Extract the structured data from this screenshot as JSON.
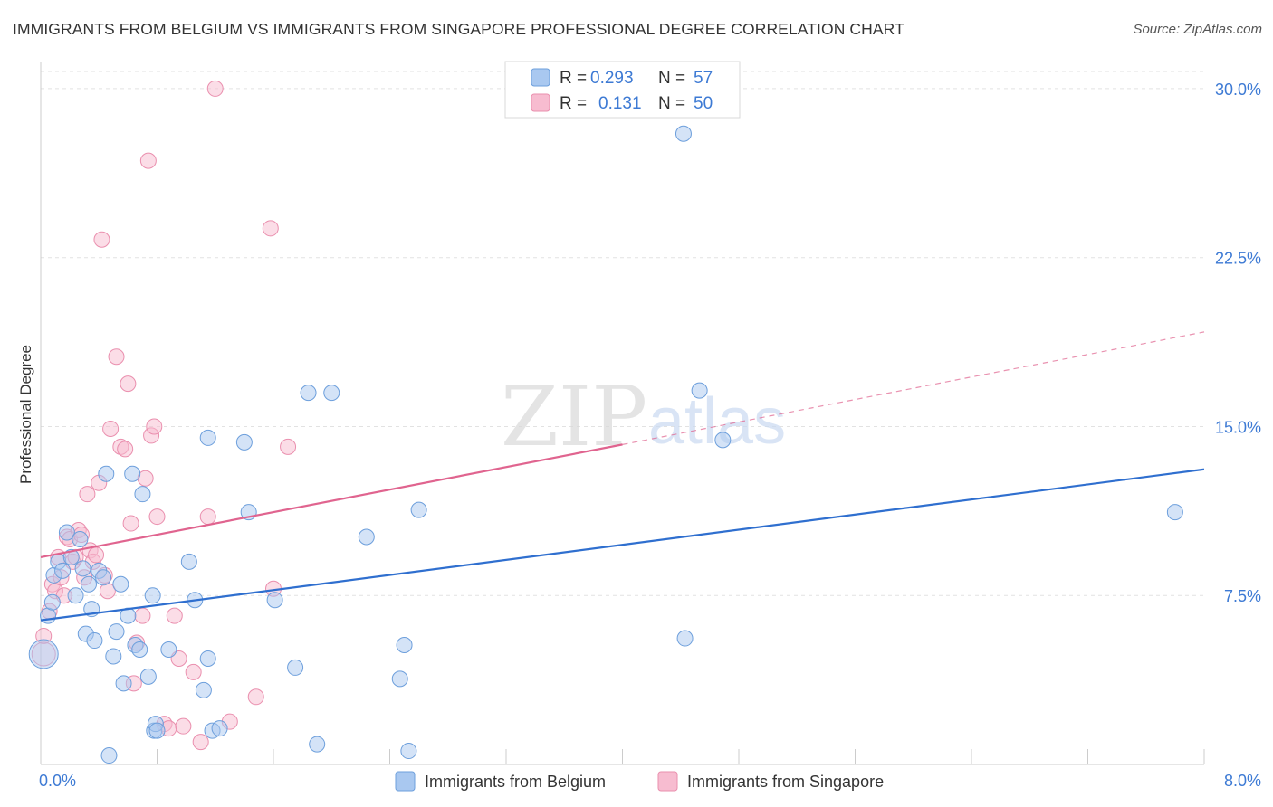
{
  "header": {
    "title": "IMMIGRANTS FROM BELGIUM VS IMMIGRANTS FROM SINGAPORE PROFESSIONAL DEGREE CORRELATION CHART",
    "source": "Source: ZipAtlas.com"
  },
  "watermark": {
    "part1": "ZIP",
    "part2": "atlas"
  },
  "legend": {
    "r_label": "R =",
    "n_label": "N =",
    "belgium": {
      "r": "0.293",
      "n": "57"
    },
    "singapore": {
      "r": "0.131",
      "n": "50"
    }
  },
  "colors": {
    "belgium_fill": "#a9c8f0",
    "belgium_stroke": "#6d9fdc",
    "belgium_line": "#2f6fcf",
    "singapore_fill": "#f7bcd0",
    "singapore_stroke": "#ea8fae",
    "singapore_line": "#e0648f",
    "tick_text": "#3d7ad4"
  },
  "chart_data": {
    "type": "scatter",
    "title": "IMMIGRANTS FROM BELGIUM VS IMMIGRANTS FROM SINGAPORE PROFESSIONAL DEGREE CORRELATION CHART",
    "xlabel": "",
    "ylabel": "Professional Degree",
    "xlim": [
      0,
      8
    ],
    "ylim": [
      0,
      30.8
    ],
    "x_tick_labels": [
      "0.0%",
      "8.0%"
    ],
    "y_ticks": [
      7.5,
      15.0,
      22.5,
      30.0
    ],
    "y_tick_labels": [
      "7.5%",
      "15.0%",
      "22.5%",
      "30.0%"
    ],
    "grid": true,
    "legend_position": "top-center",
    "series": [
      {
        "name": "Immigrants from Belgium",
        "r": 0.293,
        "n": 57,
        "trend": {
          "x0": 0.0,
          "y0": 6.4,
          "x1": 8.0,
          "y1": 13.1,
          "solid_to": 8.0
        },
        "points": [
          [
            0.05,
            6.6
          ],
          [
            0.08,
            7.2
          ],
          [
            0.09,
            8.4
          ],
          [
            0.12,
            9.0
          ],
          [
            0.15,
            8.6
          ],
          [
            0.18,
            10.3
          ],
          [
            0.21,
            9.2
          ],
          [
            0.24,
            7.5
          ],
          [
            0.27,
            10.0
          ],
          [
            0.29,
            8.7
          ],
          [
            0.31,
            5.8
          ],
          [
            0.33,
            8.0
          ],
          [
            0.35,
            6.9
          ],
          [
            0.37,
            5.5
          ],
          [
            0.4,
            8.6
          ],
          [
            0.43,
            8.3
          ],
          [
            0.45,
            12.9
          ],
          [
            0.47,
            0.4
          ],
          [
            0.5,
            4.8
          ],
          [
            0.52,
            5.9
          ],
          [
            0.55,
            8.0
          ],
          [
            0.57,
            3.6
          ],
          [
            0.6,
            6.6
          ],
          [
            0.63,
            12.9
          ],
          [
            0.65,
            5.3
          ],
          [
            0.68,
            5.1
          ],
          [
            0.7,
            12.0
          ],
          [
            0.74,
            3.9
          ],
          [
            0.77,
            7.5
          ],
          [
            0.78,
            1.5
          ],
          [
            0.79,
            1.8
          ],
          [
            0.8,
            1.5
          ],
          [
            0.88,
            5.1
          ],
          [
            1.02,
            9.0
          ],
          [
            1.06,
            7.3
          ],
          [
            1.12,
            3.3
          ],
          [
            1.15,
            14.5
          ],
          [
            1.15,
            4.7
          ],
          [
            1.18,
            1.5
          ],
          [
            1.23,
            1.6
          ],
          [
            1.4,
            14.3
          ],
          [
            1.43,
            11.2
          ],
          [
            1.61,
            7.3
          ],
          [
            1.75,
            4.3
          ],
          [
            1.84,
            16.5
          ],
          [
            1.9,
            0.9
          ],
          [
            2.0,
            16.5
          ],
          [
            2.24,
            10.1
          ],
          [
            2.47,
            3.8
          ],
          [
            2.5,
            5.3
          ],
          [
            2.53,
            0.6
          ],
          [
            2.6,
            11.3
          ],
          [
            4.42,
            28.0
          ],
          [
            4.43,
            5.6
          ],
          [
            4.53,
            16.6
          ],
          [
            4.69,
            14.4
          ],
          [
            7.8,
            11.2
          ]
        ]
      },
      {
        "name": "Immigrants from Singapore",
        "r": 0.131,
        "n": 50,
        "trend": {
          "x0": 0.0,
          "y0": 9.2,
          "x1": 8.0,
          "y1": 19.2,
          "solid_to": 4.0
        },
        "points": [
          [
            0.02,
            5.7
          ],
          [
            0.06,
            6.8
          ],
          [
            0.08,
            8.0
          ],
          [
            0.1,
            7.7
          ],
          [
            0.12,
            9.2
          ],
          [
            0.14,
            8.3
          ],
          [
            0.16,
            7.5
          ],
          [
            0.18,
            10.1
          ],
          [
            0.2,
            10.0
          ],
          [
            0.22,
            9.0
          ],
          [
            0.24,
            9.2
          ],
          [
            0.26,
            10.4
          ],
          [
            0.28,
            10.2
          ],
          [
            0.3,
            8.3
          ],
          [
            0.32,
            12.0
          ],
          [
            0.34,
            9.5
          ],
          [
            0.36,
            9.0
          ],
          [
            0.38,
            9.3
          ],
          [
            0.4,
            12.5
          ],
          [
            0.42,
            23.3
          ],
          [
            0.44,
            8.4
          ],
          [
            0.46,
            7.7
          ],
          [
            0.48,
            14.9
          ],
          [
            0.52,
            18.1
          ],
          [
            0.55,
            14.1
          ],
          [
            0.58,
            14.0
          ],
          [
            0.6,
            16.9
          ],
          [
            0.62,
            10.7
          ],
          [
            0.64,
            3.6
          ],
          [
            0.66,
            5.4
          ],
          [
            0.7,
            6.6
          ],
          [
            0.72,
            12.7
          ],
          [
            0.74,
            26.8
          ],
          [
            0.76,
            14.6
          ],
          [
            0.78,
            15.0
          ],
          [
            0.8,
            11.0
          ],
          [
            0.85,
            1.8
          ],
          [
            0.88,
            1.6
          ],
          [
            0.92,
            6.6
          ],
          [
            0.95,
            4.7
          ],
          [
            0.98,
            1.7
          ],
          [
            1.05,
            4.1
          ],
          [
            1.1,
            1.0
          ],
          [
            1.15,
            11.0
          ],
          [
            1.2,
            30.0
          ],
          [
            1.3,
            1.9
          ],
          [
            1.48,
            3.0
          ],
          [
            1.58,
            23.8
          ],
          [
            1.6,
            7.8
          ],
          [
            1.7,
            14.1
          ]
        ]
      }
    ]
  }
}
